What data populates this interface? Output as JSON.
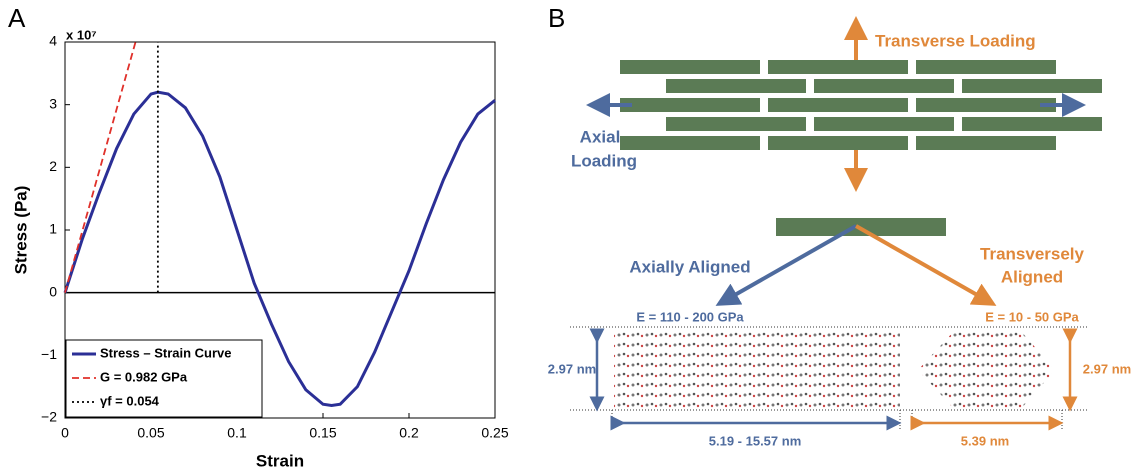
{
  "chart_data": {
    "type": "line",
    "panel_label": "A",
    "x_label": "Strain",
    "y_label": "Stress (Pa)",
    "y_multiplier": "x 10⁷",
    "xlim": [
      0,
      0.25
    ],
    "xticks": [
      0,
      0.05,
      0.1,
      0.15,
      0.2,
      0.25
    ],
    "ylim": [
      -2,
      4
    ],
    "yticks": [
      {
        "value": -2,
        "label": "−2"
      },
      {
        "value": -1,
        "label": "−1"
      },
      0,
      1,
      2,
      3,
      4
    ],
    "legend": "bottom-left",
    "series": [
      {
        "name": "Stress – Strain Curve",
        "color": "#2b2f96",
        "style": "solid",
        "x": [
          0,
          0.01,
          0.02,
          0.03,
          0.04,
          0.05,
          0.054,
          0.06,
          0.07,
          0.08,
          0.09,
          0.1,
          0.11,
          0.12,
          0.13,
          0.14,
          0.15,
          0.155,
          0.16,
          0.17,
          0.18,
          0.19,
          0.2,
          0.21,
          0.22,
          0.23,
          0.24,
          0.25
        ],
        "values": [
          0,
          0.85,
          1.6,
          2.3,
          2.85,
          3.17,
          3.2,
          3.17,
          2.95,
          2.5,
          1.85,
          1.0,
          0.15,
          -0.5,
          -1.1,
          -1.55,
          -1.78,
          -1.8,
          -1.78,
          -1.5,
          -0.95,
          -0.3,
          0.35,
          1.1,
          1.8,
          2.4,
          2.85,
          3.07
        ]
      },
      {
        "name": "G = 0.982 GPa",
        "color": "#e0302a",
        "style": "dashed",
        "x": [
          0,
          0.041
        ],
        "values": [
          0,
          4
        ]
      },
      {
        "name": "γf = 0.054",
        "color": "#000000",
        "style": "dotted",
        "x": [
          0.054,
          0.054
        ],
        "values": [
          0,
          4
        ]
      }
    ]
  },
  "panel_b": {
    "label": "B",
    "transverse_loading": "Transverse Loading",
    "axial_loading": [
      "Axial",
      "Loading"
    ],
    "axially_aligned": "Axially Aligned",
    "transversely_aligned": [
      "Transversely",
      "Aligned"
    ],
    "axial_modulus": "E = 110 - 200 GPa",
    "transverse_modulus": "E = 10 - 50 GPa",
    "axial_height": "2.97 nm",
    "axial_width": "5.19 - 15.57 nm",
    "transverse_height": "2.97 nm",
    "transverse_width": "5.39 nm"
  }
}
